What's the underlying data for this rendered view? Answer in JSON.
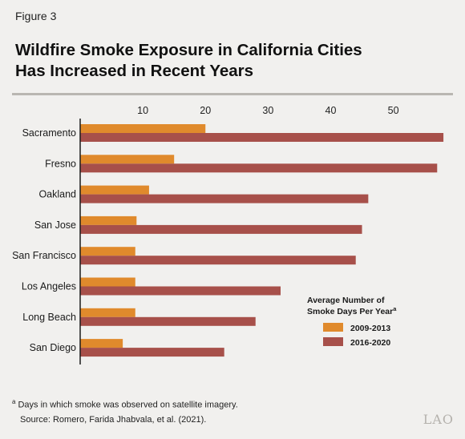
{
  "figure_label": "Figure 3",
  "title_lines": [
    "Wildfire Smoke Exposure in California Cities",
    "Has Increased in Recent Years"
  ],
  "footnote_marker": "a",
  "footnote_text": "Days in which smoke was observed on satellite imagery.",
  "source": "Source: Romero, Farida Jhabvala, et al. (2021).",
  "logo_text": "LAO",
  "chart_data": {
    "type": "bar",
    "orientation": "horizontal",
    "categories": [
      "Sacramento",
      "Fresno",
      "Oakland",
      "San Jose",
      "San Francisco",
      "Los Angeles",
      "Long Beach",
      "San Diego"
    ],
    "series": [
      {
        "name": "2009-2013",
        "color": "#e08a2c",
        "values": [
          20,
          15,
          11,
          9,
          8.8,
          8.8,
          8.8,
          6.8
        ]
      },
      {
        "name": "2016-2020",
        "color": "#a7504a",
        "values": [
          58,
          57,
          46,
          45,
          44,
          32,
          28,
          23
        ]
      }
    ],
    "xticks": [
      10,
      20,
      30,
      40,
      50
    ],
    "xlim": [
      0,
      58.5
    ],
    "legend": {
      "title_lines": [
        "Average Number of",
        "Smoke Days Per Year"
      ],
      "title_superscript": "a",
      "position": "lower-right"
    },
    "axis_color": "#1a1a1a"
  }
}
